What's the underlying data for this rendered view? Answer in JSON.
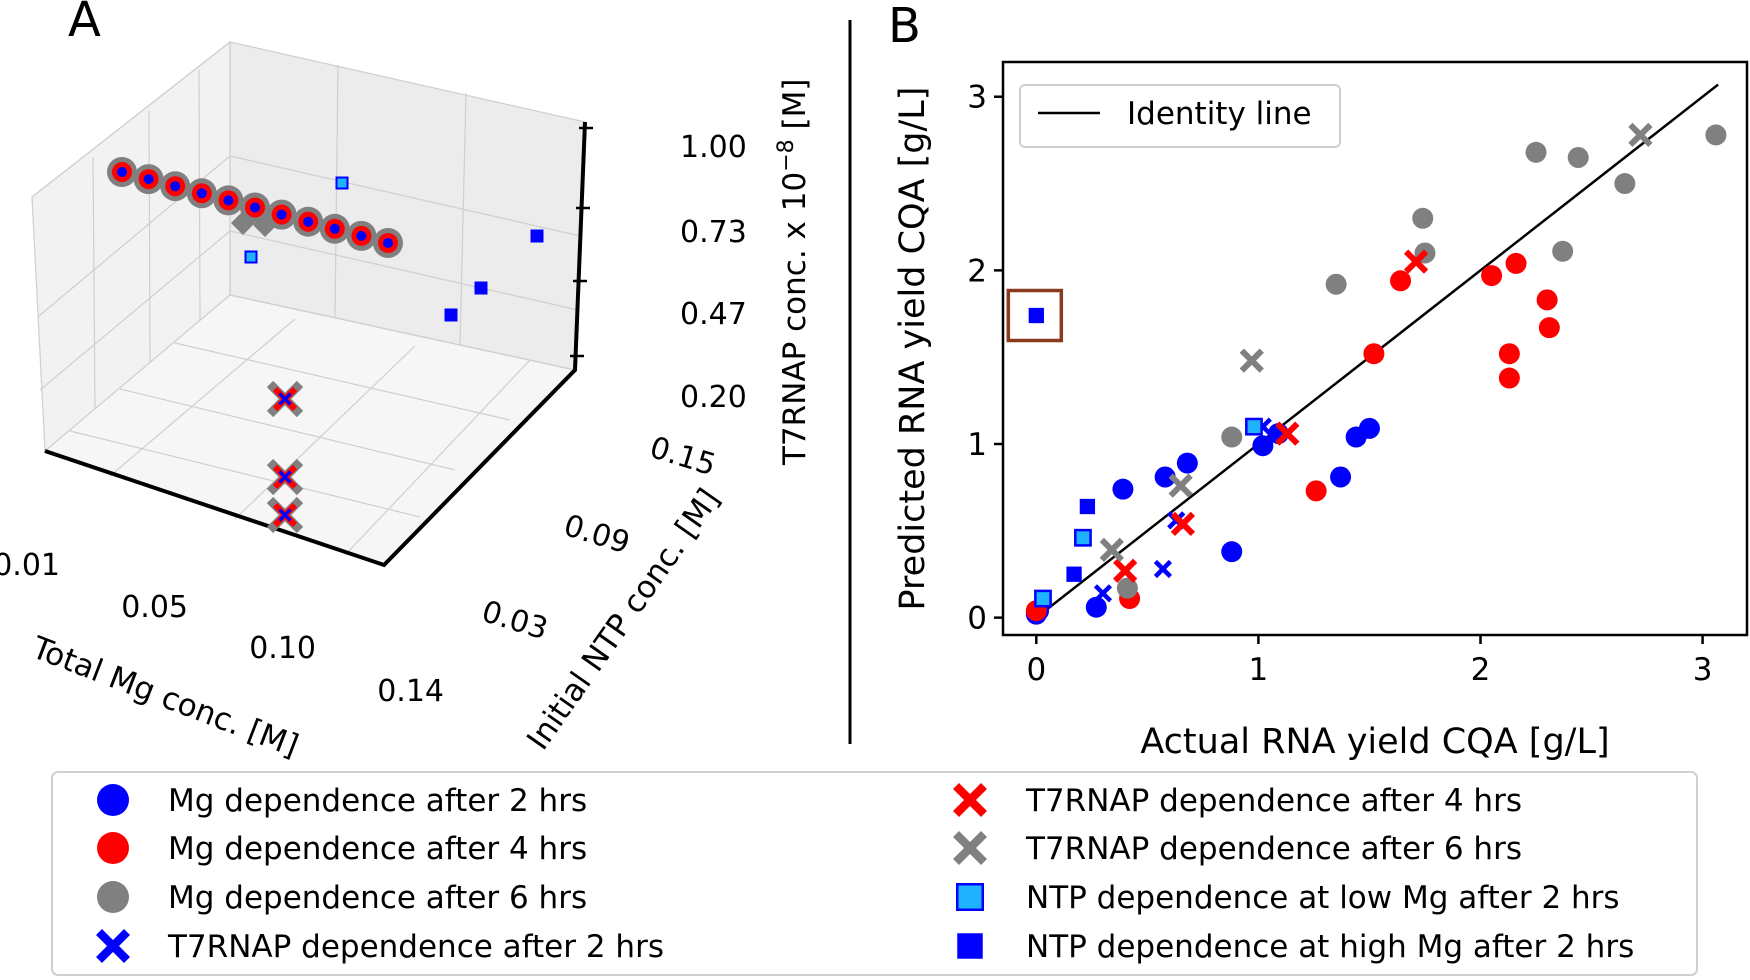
{
  "colors": {
    "blue": "#0000ff",
    "red": "#ff0000",
    "gray": "#808080",
    "cyan": "#1fb3ff",
    "brown": "#8b3a1e",
    "identity": "#000000"
  },
  "panel_a": {
    "label": "A",
    "xlabel": "Total Mg conc. [M]",
    "ylabel": "Initial NTP conc. [M]",
    "zlabel": "T7RNAP conc. x 10",
    "zlabel_exp": "−8",
    "zlabel_unit": " [M]",
    "xticks": [
      "0.01",
      "0.05",
      "0.10",
      "0.14"
    ],
    "yticks": [
      "0.15",
      "0.09",
      "0.03"
    ],
    "zticks": [
      "1.00",
      "0.73",
      "0.47",
      "0.20"
    ]
  },
  "panel_b": {
    "label": "B"
  },
  "legend": {
    "items": [
      {
        "label": "Mg dependence after 2 hrs",
        "marker": "circle",
        "color": "blue"
      },
      {
        "label": "Mg dependence after 4 hrs",
        "marker": "circle",
        "color": "red"
      },
      {
        "label": "Mg dependence after 6 hrs",
        "marker": "circle",
        "color": "gray"
      },
      {
        "label": "T7RNAP dependence after 2 hrs",
        "marker": "x",
        "color": "blue"
      },
      {
        "label": "T7RNAP dependence after 4 hrs",
        "marker": "x",
        "color": "red"
      },
      {
        "label": "T7RNAP dependence after 6 hrs",
        "marker": "x",
        "color": "gray"
      },
      {
        "label": "NTP dependence at low Mg after 2 hrs",
        "marker": "square",
        "color": "cyan"
      },
      {
        "label": "NTP dependence at high Mg after 2 hrs",
        "marker": "square",
        "color": "blue"
      }
    ]
  },
  "chart_data": [
    {
      "panel": "A",
      "type": "scatter",
      "title": "",
      "xlabel": "Total Mg conc. [M]",
      "ylabel": "Initial NTP conc. [M]",
      "zlabel": "T7RNAP conc. x 10^-8 [M]",
      "xlim": [
        0.01,
        0.14
      ],
      "ylim": [
        0.03,
        0.15
      ],
      "zlim": [
        0.2,
        1.0
      ],
      "series": [
        {
          "name": "Mg dependence (2, 4, 6 hrs)",
          "x": [
            0.01,
            0.02,
            0.03,
            0.04,
            0.05,
            0.06,
            0.07,
            0.08,
            0.09,
            0.1,
            0.11,
            0.12,
            0.13,
            0.14
          ],
          "y": [
            0.09,
            0.09,
            0.09,
            0.09,
            0.09,
            0.09,
            0.09,
            0.09,
            0.09,
            0.09,
            0.09,
            0.09,
            0.09,
            0.09
          ],
          "z": [
            1.0,
            1.0,
            1.0,
            1.0,
            1.0,
            1.0,
            1.0,
            1.0,
            1.0,
            1.0,
            1.0,
            1.0,
            1.0,
            1.0
          ]
        },
        {
          "name": "T7RNAP dependence (2, 4, 6 hrs)",
          "x": [
            0.05,
            0.05,
            0.05,
            0.05
          ],
          "y": [
            0.09,
            0.09,
            0.09,
            0.09
          ],
          "z": [
            1.0,
            0.47,
            0.27,
            0.2
          ]
        },
        {
          "name": "NTP dependence at low Mg after 2 hrs",
          "x": [
            0.06,
            0.04
          ],
          "y": [
            0.15,
            0.03
          ],
          "z": [
            1.0,
            1.0
          ]
        },
        {
          "name": "NTP dependence at high Mg after 2 hrs",
          "x": [
            0.14,
            0.12,
            0.12
          ],
          "y": [
            0.15,
            0.09,
            0.03
          ],
          "z": [
            1.0,
            1.0,
            1.0
          ]
        }
      ]
    },
    {
      "panel": "B",
      "type": "scatter",
      "title": "",
      "xlabel": "Actual RNA yield CQA [g/L]",
      "ylabel": "Predicted RNA yield CQA [g/L]",
      "xlim": [
        -0.15,
        3.2
      ],
      "ylim": [
        -0.1,
        3.2
      ],
      "xticks": [
        0,
        1,
        2,
        3
      ],
      "yticks": [
        0,
        1,
        2,
        3
      ],
      "legend": {
        "label": "Identity line",
        "position": "top-left"
      },
      "identity_line": {
        "x": [
          0,
          3.07
        ],
        "y": [
          0,
          3.07
        ]
      },
      "highlight_box": {
        "x": 0.0,
        "y": 1.74
      },
      "series": [
        {
          "name": "Mg dependence after 2 hrs",
          "marker": "circle",
          "color": "blue",
          "x": [
            0.0,
            0.01,
            0.27,
            0.39,
            0.58,
            0.68,
            0.88,
            1.02,
            1.09,
            1.37,
            1.44,
            1.5
          ],
          "y": [
            0.02,
            0.04,
            0.06,
            0.74,
            0.81,
            0.89,
            0.38,
            0.99,
            1.06,
            0.81,
            1.04,
            1.09
          ]
        },
        {
          "name": "Mg dependence after 4 hrs",
          "marker": "circle",
          "color": "red",
          "x": [
            0.0,
            0.42,
            1.26,
            1.52,
            1.64,
            2.05,
            2.13,
            2.13,
            2.16,
            2.3,
            2.31
          ],
          "y": [
            0.04,
            0.11,
            0.73,
            1.52,
            1.94,
            1.97,
            1.52,
            1.38,
            2.04,
            1.83,
            1.67
          ]
        },
        {
          "name": "Mg dependence after 6 hrs",
          "marker": "circle",
          "color": "gray",
          "x": [
            0.41,
            0.88,
            1.35,
            1.74,
            1.75,
            2.25,
            2.37,
            2.44,
            2.65,
            3.06
          ],
          "y": [
            0.17,
            1.04,
            1.92,
            2.3,
            2.1,
            2.68,
            2.11,
            2.65,
            2.5,
            2.78
          ]
        },
        {
          "name": "T7RNAP dependence after 2 hrs",
          "marker": "x",
          "color": "blue",
          "x": [
            0.3,
            0.57,
            0.63,
            1.02
          ],
          "y": [
            0.14,
            0.28,
            0.56,
            1.1
          ]
        },
        {
          "name": "T7RNAP dependence after 4 hrs",
          "marker": "x",
          "color": "red",
          "x": [
            0.4,
            0.66,
            1.13,
            1.71
          ],
          "y": [
            0.27,
            0.54,
            1.06,
            2.05
          ]
        },
        {
          "name": "T7RNAP dependence after 6 hrs",
          "marker": "x",
          "color": "gray",
          "x": [
            0.34,
            0.65,
            0.97,
            2.72
          ],
          "y": [
            0.39,
            0.76,
            1.48,
            2.78
          ]
        },
        {
          "name": "NTP dependence at low Mg after 2 hrs",
          "marker": "square",
          "color": "cyan",
          "x": [
            0.03,
            0.21,
            0.98
          ],
          "y": [
            0.11,
            0.46,
            1.1
          ]
        },
        {
          "name": "NTP dependence at high Mg after 2 hrs",
          "marker": "square",
          "color": "blue",
          "x": [
            0.0,
            0.17,
            0.23
          ],
          "y": [
            1.74,
            0.25,
            0.64
          ]
        }
      ]
    }
  ]
}
